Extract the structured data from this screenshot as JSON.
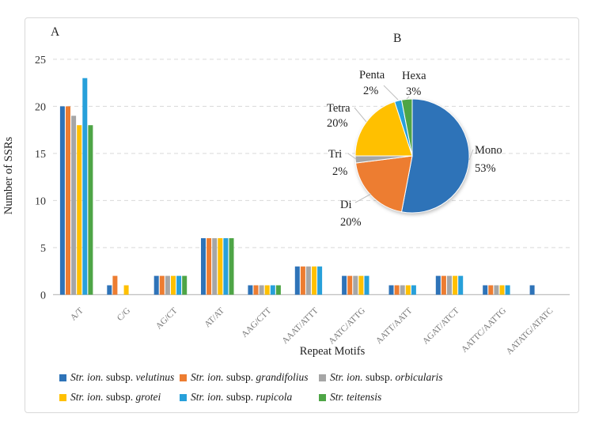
{
  "chart_data": [
    {
      "type": "bar",
      "title": "A",
      "xlabel": "Repeat Motifs",
      "ylabel": "Number of SSRs",
      "ylim": [
        0,
        25
      ],
      "yticks": [
        0,
        5,
        10,
        15,
        20,
        25
      ],
      "grid": "horizontal-dashed",
      "legend_position": "bottom",
      "categories": [
        "A/T",
        "C/G",
        "AG/CT",
        "AT/AT",
        "AAG/CTT",
        "AAAT/ATTT",
        "AATC/ATTG",
        "AATT/AATT",
        "AGAT/ATCT",
        "AATTC/AATTG",
        "AATATG/ATATC"
      ],
      "series": [
        {
          "name": "Str. ion. subsp. velutinus",
          "color": "#2e73b8",
          "values": [
            20,
            1,
            2,
            6,
            1,
            3,
            2,
            1,
            2,
            1,
            1
          ]
        },
        {
          "name": "Str. ion. subsp. grandifolius",
          "color": "#ed7d31",
          "values": [
            20,
            2,
            2,
            6,
            1,
            3,
            2,
            1,
            2,
            1,
            0
          ]
        },
        {
          "name": "Str. ion. subsp. orbicularis",
          "color": "#a6a6a6",
          "values": [
            19,
            0,
            2,
            6,
            1,
            3,
            2,
            1,
            2,
            1,
            0
          ]
        },
        {
          "name": "Str. ion. subsp. grotei",
          "color": "#ffc000",
          "values": [
            18,
            1,
            2,
            6,
            1,
            3,
            2,
            1,
            2,
            1,
            0
          ]
        },
        {
          "name": "Str. ion. subsp. rupicola",
          "color": "#27a0da",
          "values": [
            23,
            0,
            2,
            6,
            1,
            3,
            2,
            1,
            2,
            1,
            0
          ]
        },
        {
          "name": "Str. teitensis",
          "color": "#4ea546",
          "values": [
            18,
            0,
            2,
            6,
            1,
            0,
            0,
            0,
            0,
            0,
            0
          ]
        }
      ]
    },
    {
      "type": "pie",
      "title": "B",
      "slices": [
        {
          "label": "Mono",
          "pct": 53,
          "color": "#2e73b8"
        },
        {
          "label": "Di",
          "pct": 20,
          "color": "#ed7d31"
        },
        {
          "label": "Tri",
          "pct": 2,
          "color": "#a6a6a6"
        },
        {
          "label": "Tetra",
          "pct": 20,
          "color": "#ffc000"
        },
        {
          "label": "Penta",
          "pct": 2,
          "color": "#27a0da"
        },
        {
          "label": "Hexa",
          "pct": 3,
          "color": "#4ea546"
        }
      ]
    }
  ],
  "legend": {
    "items": [
      {
        "color": "#2e73b8",
        "italic1": "Str. ion.",
        "roman": " subsp. ",
        "italic2": "velutinus"
      },
      {
        "color": "#ed7d31",
        "italic1": "Str. ion.",
        "roman": " subsp. ",
        "italic2": "grandifolius"
      },
      {
        "color": "#a6a6a6",
        "italic1": "Str. ion.",
        "roman": " subsp. ",
        "italic2": "orbicularis"
      },
      {
        "color": "#ffc000",
        "italic1": "Str. ion.",
        "roman": " subsp. ",
        "italic2": "grotei"
      },
      {
        "color": "#27a0da",
        "italic1": "Str. ion.",
        "roman": " subsp. ",
        "italic2": "rupicola"
      },
      {
        "color": "#4ea546",
        "italic1": "Str.",
        "roman": " ",
        "italic2": "teitensis"
      }
    ]
  },
  "colors": {
    "border": "#d9d9d9",
    "gridline": "#d9d9d9",
    "baseline": "#bfbfbf",
    "leader_line": "#bfbfbf"
  }
}
